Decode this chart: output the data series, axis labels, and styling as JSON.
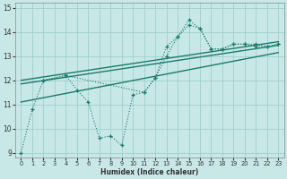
{
  "xlabel": "Humidex (Indice chaleur)",
  "bg_color": "#c8e8e8",
  "grid_color": "#a0cece",
  "line_color": "#1a7a6a",
  "xlim": [
    -0.5,
    23.5
  ],
  "ylim": [
    8.8,
    15.2
  ],
  "yticks": [
    9,
    10,
    11,
    12,
    13,
    14,
    15
  ],
  "xticks": [
    0,
    1,
    2,
    3,
    4,
    5,
    6,
    7,
    8,
    9,
    10,
    11,
    12,
    13,
    14,
    15,
    16,
    17,
    18,
    19,
    20,
    21,
    22,
    23
  ],
  "series1_x": [
    0,
    1,
    2,
    4,
    5,
    6,
    7,
    8,
    9,
    10,
    11,
    12,
    13,
    14,
    15,
    16,
    17,
    18,
    19,
    20,
    21,
    22,
    23
  ],
  "series1_y": [
    9.0,
    10.8,
    12.0,
    12.2,
    11.6,
    11.1,
    9.6,
    9.7,
    9.3,
    11.4,
    11.5,
    12.1,
    13.4,
    13.8,
    14.3,
    14.15,
    13.3,
    13.3,
    13.5,
    13.5,
    13.5,
    13.4,
    13.5
  ],
  "series2_x": [
    2,
    4,
    11,
    12,
    13,
    14,
    15,
    16,
    17,
    18,
    19,
    20,
    21,
    22,
    23
  ],
  "series2_y": [
    12.0,
    12.2,
    11.5,
    12.1,
    13.0,
    13.8,
    14.5,
    14.15,
    13.3,
    13.3,
    13.5,
    13.5,
    13.4,
    13.4,
    13.5
  ],
  "trend1_x": [
    0,
    23
  ],
  "trend1_y": [
    11.1,
    13.15
  ],
  "trend2_x": [
    0,
    23
  ],
  "trend2_y": [
    11.85,
    13.45
  ],
  "trend3_x": [
    0,
    23
  ],
  "trend3_y": [
    12.0,
    13.6
  ]
}
